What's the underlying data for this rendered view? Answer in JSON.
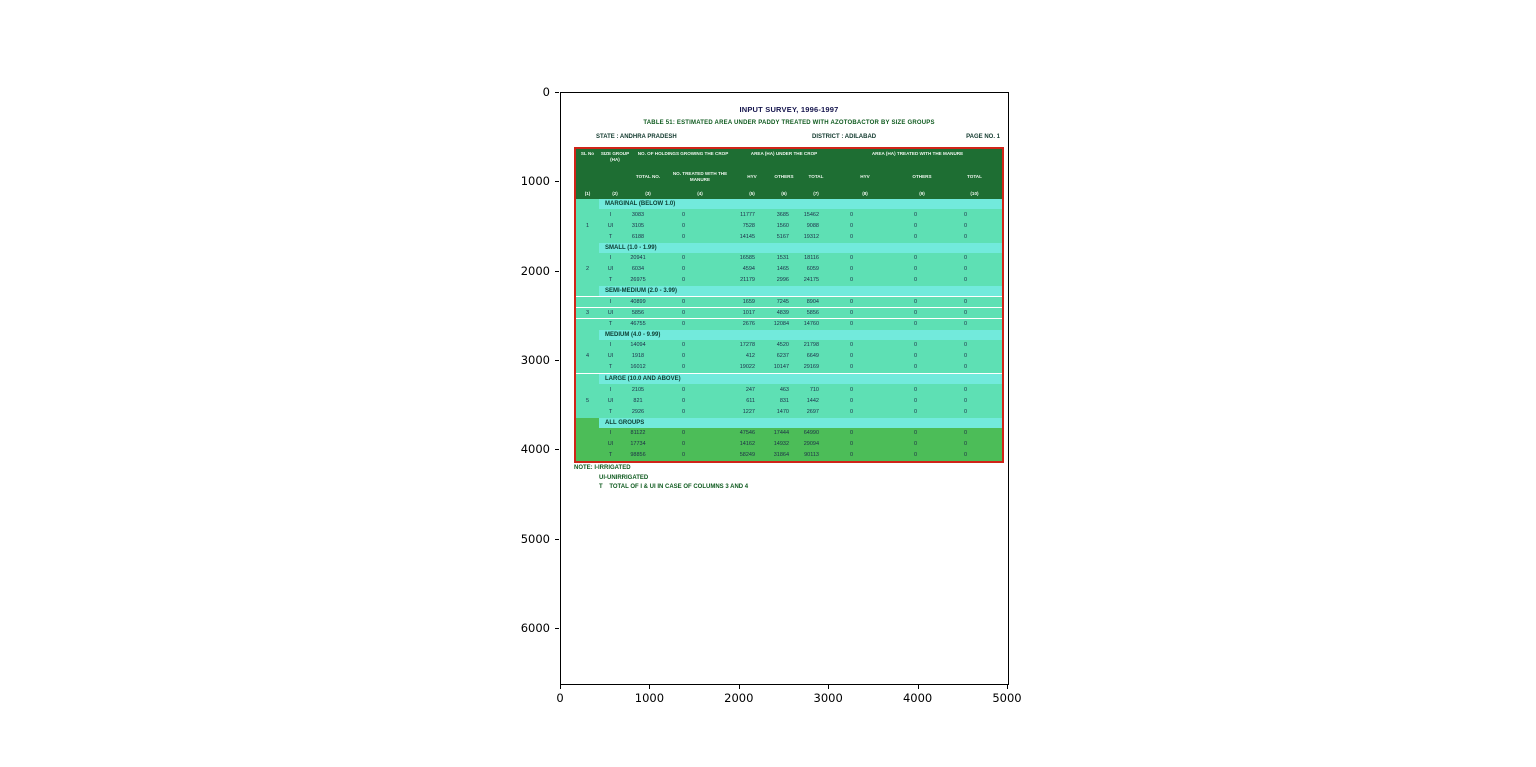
{
  "figure": {
    "x_ticks": [
      "0",
      "1000",
      "2000",
      "3000",
      "4000",
      "5000"
    ],
    "y_ticks": [
      "0",
      "1000",
      "2000",
      "3000",
      "4000",
      "5000",
      "6000"
    ]
  },
  "page": {
    "title": "INPUT SURVEY, 1996-1997",
    "subtitle": "TABLE 51: ESTIMATED AREA UNDER PADDY TREATED WITH AZOTOBACTOR BY SIZE GROUPS",
    "state_label": "STATE : ANDHRA PRADESH",
    "district_label": "DISTRICT : ADILABAD",
    "page_no": "PAGE NO. 1",
    "note_lines": [
      "NOTE: I-IRRIGATED",
      "UI-UNIRRIGATED",
      "T    TOTAL OF I & UI IN CASE OF COLUMNS 3 AND 4"
    ]
  },
  "table": {
    "header": {
      "col1": "SL No",
      "col2": "SIZE GROUP (HA)",
      "group1": "NO. OF HOLDINGS GROWING THE CROP",
      "group2": "AREA (HA) UNDER THE CROP",
      "group3": "AREA (HA) TREATED WITH THE MANURE",
      "subs": [
        "TOTAL NO.",
        "NO. TREATED WITH THE MANURE",
        "HYV",
        "OTHERS",
        "TOTAL",
        "HYV",
        "OTHERS",
        "TOTAL"
      ],
      "nums": [
        "(1)",
        "(2)",
        "(3)",
        "(4)",
        "(5)",
        "(6)",
        "(7)",
        "(8)",
        "(9)",
        "(10)"
      ]
    },
    "bands": [
      {
        "sl": "1",
        "label": "MARGINAL (BELOW 1.0)",
        "rows": [
          [
            "I",
            "3083",
            "0",
            "11777",
            "3685",
            "15462",
            "0",
            "0",
            "0"
          ],
          [
            "UI",
            "3105",
            "0",
            "7528",
            "1560",
            "9088",
            "0",
            "0",
            "0"
          ],
          [
            "T",
            "6188",
            "0",
            "14145",
            "5167",
            "19312",
            "0",
            "0",
            "0"
          ]
        ]
      },
      {
        "sl": "2",
        "label": "SMALL (1.0 - 1.99)",
        "rows": [
          [
            "I",
            "20941",
            "0",
            "16585",
            "1531",
            "18116",
            "0",
            "0",
            "0"
          ],
          [
            "UI",
            "6034",
            "0",
            "4594",
            "1465",
            "6059",
            "0",
            "0",
            "0"
          ],
          [
            "T",
            "26975",
            "0",
            "21179",
            "2996",
            "24175",
            "0",
            "0",
            "0"
          ]
        ]
      },
      {
        "sl": "3",
        "label": "SEMI-MEDIUM (2.0 - 3.99)",
        "separators": true,
        "rows": [
          [
            "I",
            "40899",
            "0",
            "1659",
            "7245",
            "8904",
            "0",
            "0",
            "0"
          ],
          [
            "UI",
            "5856",
            "0",
            "1017",
            "4839",
            "5856",
            "0",
            "0",
            "0"
          ],
          [
            "T",
            "46755",
            "0",
            "2676",
            "12084",
            "14760",
            "0",
            "0",
            "0"
          ]
        ]
      },
      {
        "sl": "4",
        "label": "MEDIUM (4.0 - 9.99)",
        "rows": [
          [
            "I",
            "14094",
            "0",
            "17278",
            "4520",
            "21798",
            "0",
            "0",
            "0"
          ],
          [
            "UI",
            "1918",
            "0",
            "412",
            "6237",
            "6649",
            "0",
            "0",
            "0"
          ],
          [
            "T",
            "16012",
            "0",
            "19022",
            "10147",
            "29169",
            "0",
            "0",
            "0"
          ]
        ]
      },
      {
        "sl": "5",
        "label": "LARGE (10.0 AND ABOVE)",
        "white_top": true,
        "rows": [
          [
            "I",
            "2105",
            "0",
            "247",
            "463",
            "710",
            "0",
            "0",
            "0"
          ],
          [
            "UI",
            "821",
            "0",
            "611",
            "831",
            "1442",
            "0",
            "0",
            "0"
          ],
          [
            "T",
            "2926",
            "0",
            "1227",
            "1470",
            "2697",
            "0",
            "0",
            "0"
          ]
        ]
      },
      {
        "sl": "",
        "label": "ALL GROUPS",
        "all_groups": true,
        "rows": [
          [
            "I",
            "81122",
            "0",
            "47546",
            "17444",
            "64990",
            "0",
            "0",
            "0"
          ],
          [
            "UI",
            "17734",
            "0",
            "14162",
            "14932",
            "29094",
            "0",
            "0",
            "0"
          ],
          [
            "T",
            "98856",
            "0",
            "58249",
            "31864",
            "90113",
            "0",
            "0",
            "0"
          ]
        ]
      }
    ]
  },
  "colors": {
    "header_green": "#1e6e33",
    "body_teal": "#5ee0b4",
    "band_cyan": "#72eadc",
    "all_groups_green": "#4cbd58",
    "table_border_red": "#d02418",
    "title_navy": "#15154d",
    "subtitle_green": "#0e5a1e"
  }
}
